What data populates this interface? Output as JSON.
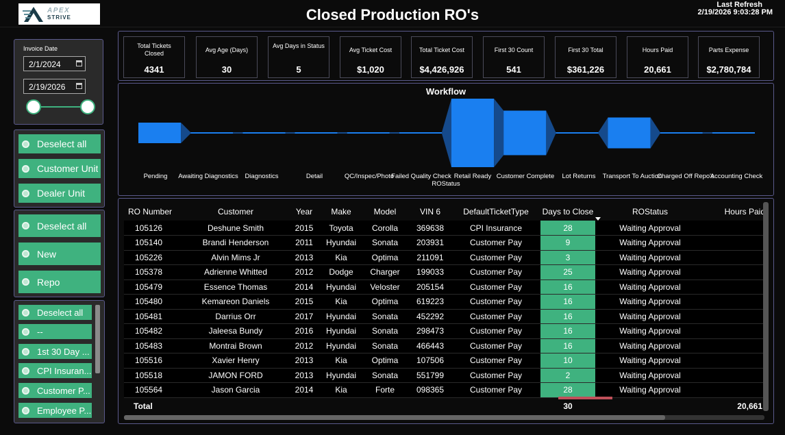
{
  "header": {
    "logo_top": "APEX",
    "logo_bottom": "STRIVE",
    "title": "Closed Production RO's",
    "refresh_label": "Last Refresh",
    "refresh_value": "2/19/2026 9:03:28 PM"
  },
  "date_slicer": {
    "label": "Invoice Date",
    "start": "2/1/2024",
    "end": "2/19/2026"
  },
  "unit_slicer": [
    "Deselect all",
    "Customer Unit",
    "Dealer Unit"
  ],
  "type_slicer": [
    "Deselect all",
    "New",
    "Repo"
  ],
  "ticket_slicer": [
    "Deselect all",
    "--",
    "1st 30 Day ...",
    "CPI Insuran...",
    "Customer P...",
    "Employee P..."
  ],
  "kpis": [
    {
      "label": "Total Tickets Closed",
      "value": "4341"
    },
    {
      "label": "Avg Age (Days)",
      "value": "30"
    },
    {
      "label": "Avg Days in Status",
      "value": "5"
    },
    {
      "label": "Avg Ticket Cost",
      "value": "$1,020"
    },
    {
      "label": "Total Ticket Cost",
      "value": "$4,426,926"
    },
    {
      "label": "First 30 Count",
      "value": "541"
    },
    {
      "label": "First 30 Total",
      "value": "$361,226"
    },
    {
      "label": "Hours Paid",
      "value": "20,661"
    },
    {
      "label": "Parts Expense",
      "value": "$2,780,784"
    }
  ],
  "workflow": {
    "title": "Workflow",
    "axis_label": "ROStatus",
    "stages": [
      "Pending",
      "Awaiting Diagnostics",
      "Diagnostics",
      "Detail",
      "QC/Inspec/Photo",
      "Failed Quality Check",
      "Retail Ready",
      "Customer Complete",
      "Lot Returns",
      "Transport To Auction",
      "Charged Off Repo's",
      "Accounting Check"
    ],
    "relative_volume": [
      0.3,
      0.02,
      0.02,
      0.02,
      0.02,
      0.02,
      1.0,
      0.65,
      0.02,
      0.45,
      0.02,
      0.02
    ],
    "color": "#1a7ff0"
  },
  "table": {
    "columns": [
      "RO Number",
      "Customer",
      "Year",
      "Make",
      "Model",
      "VIN 6",
      "DefaultTicketType",
      "Days to Close",
      "ROStatus",
      "Hours Paid"
    ],
    "rows": [
      [
        "105126",
        "Deshune Smith",
        "2015",
        "Toyota",
        "Corolla",
        "369638",
        "CPI Insurance",
        "28",
        "Waiting Approval",
        ""
      ],
      [
        "105140",
        "Brandi Henderson",
        "2011",
        "Hyundai",
        "Sonata",
        "203931",
        "Customer Pay",
        "9",
        "Waiting Approval",
        ""
      ],
      [
        "105226",
        "Alvin Mims Jr",
        "2013",
        "Kia",
        "Optima",
        "211091",
        "Customer Pay",
        "3",
        "Waiting Approval",
        ""
      ],
      [
        "105378",
        "Adrienne Whitted",
        "2012",
        "Dodge",
        "Charger",
        "199033",
        "Customer Pay",
        "25",
        "Waiting Approval",
        ""
      ],
      [
        "105479",
        "Essence Thomas",
        "2014",
        "Hyundai",
        "Veloster",
        "205154",
        "Customer Pay",
        "16",
        "Waiting Approval",
        ""
      ],
      [
        "105480",
        "Kemareon Daniels",
        "2015",
        "Kia",
        "Optima",
        "619223",
        "Customer Pay",
        "16",
        "Waiting Approval",
        ""
      ],
      [
        "105481",
        "Darrius Orr",
        "2017",
        "Hyundai",
        "Sonata",
        "452292",
        "Customer Pay",
        "16",
        "Waiting Approval",
        ""
      ],
      [
        "105482",
        "Jaleesa Bundy",
        "2016",
        "Hyundai",
        "Sonata",
        "298473",
        "Customer Pay",
        "16",
        "Waiting Approval",
        ""
      ],
      [
        "105483",
        "Montrai Brown",
        "2012",
        "Hyundai",
        "Sonata",
        "466443",
        "Customer Pay",
        "16",
        "Waiting Approval",
        ""
      ],
      [
        "105516",
        "Xavier Henry",
        "2013",
        "Kia",
        "Optima",
        "107506",
        "Customer Pay",
        "10",
        "Waiting Approval",
        ""
      ],
      [
        "105518",
        "JAMON FORD",
        "2013",
        "Hyundai",
        "Sonata",
        "551799",
        "Customer Pay",
        "2",
        "Waiting Approval",
        ""
      ],
      [
        "105564",
        "Jason Garcia",
        "2014",
        "Kia",
        "Forte",
        "098365",
        "Customer Pay",
        "28",
        "Waiting Approval",
        ""
      ]
    ],
    "total_label": "Total",
    "total_days": "30",
    "total_hours": "20,661"
  },
  "colors": {
    "accent_green": "#3fb27f",
    "panel_border": "#5b5a8c",
    "funnel_blue": "#1a7ff0"
  }
}
